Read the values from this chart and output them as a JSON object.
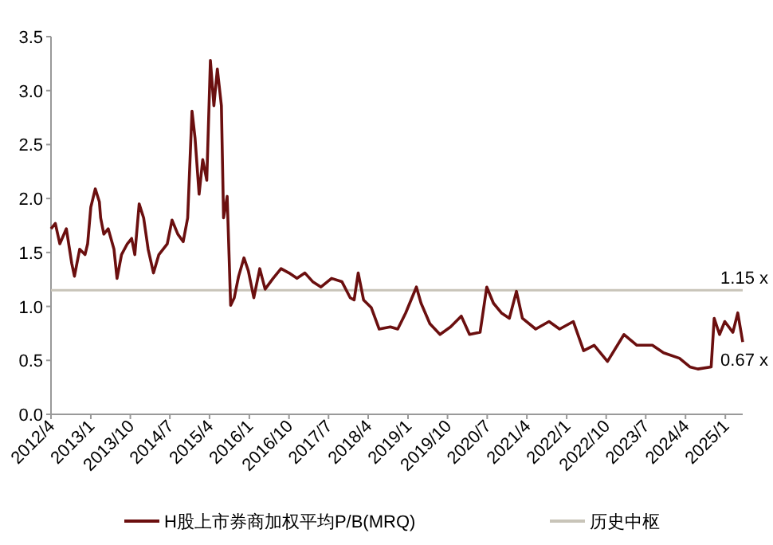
{
  "chart_data": {
    "type": "line",
    "marker": "none",
    "line_style": "solid",
    "legend": "bottom",
    "xlim": [
      "2012-04-01",
      "2025-05-01"
    ],
    "ylim": [
      0,
      3.5
    ],
    "yticks": [
      {
        "value": 0,
        "label": "0.0"
      },
      {
        "value": 0.5,
        "label": "0.5"
      },
      {
        "value": 1,
        "label": "1.0"
      },
      {
        "value": 1.5,
        "label": "1.5"
      },
      {
        "value": 2,
        "label": "2.0"
      },
      {
        "value": 2.5,
        "label": "2.5"
      },
      {
        "value": 3,
        "label": "3.0"
      },
      {
        "value": 3.5,
        "label": "3.5"
      }
    ],
    "xticks": [
      {
        "value": "2012-04",
        "label": "2012/4"
      },
      {
        "value": "2013-01",
        "label": "2013/1"
      },
      {
        "value": "2013-10",
        "label": "2013/10"
      },
      {
        "value": "2014-07",
        "label": "2014/7"
      },
      {
        "value": "2015-04",
        "label": "2015/4"
      },
      {
        "value": "2016-01",
        "label": "2016/1"
      },
      {
        "value": "2016-10",
        "label": "2016/10"
      },
      {
        "value": "2017-07",
        "label": "2017/7"
      },
      {
        "value": "2018-04",
        "label": "2018/4"
      },
      {
        "value": "2019-01",
        "label": "2019/1"
      },
      {
        "value": "2019-10",
        "label": "2019/10"
      },
      {
        "value": "2020-07",
        "label": "2020/7"
      },
      {
        "value": "2021-04",
        "label": "2021/4"
      },
      {
        "value": "2022-01",
        "label": "2022/1"
      },
      {
        "value": "2022-10",
        "label": "2022/10"
      },
      {
        "value": "2023-07",
        "label": "2023/7"
      },
      {
        "value": "2024-04",
        "label": "2024/4"
      },
      {
        "value": "2025-01",
        "label": "2025/1"
      }
    ],
    "series": [
      {
        "name": "H股上市券商加权平均P/B(MRQ)",
        "color": "#6b0f0f",
        "x": [
          "2012-04-01",
          "2012-05-01",
          "2012-06-01",
          "2012-07-16",
          "2012-08-22",
          "2012-09-10",
          "2012-10-16",
          "2012-11-22",
          "2012-12-10",
          "2013-01-01",
          "2013-02-01",
          "2013-03-01",
          "2013-03-10",
          "2013-04-01",
          "2013-05-01",
          "2013-06-10",
          "2013-07-01",
          "2013-08-01",
          "2013-09-10",
          "2013-10-10",
          "2013-11-01",
          "2013-12-01",
          "2014-01-01",
          "2014-02-01",
          "2014-03-10",
          "2014-04-16",
          "2014-06-13",
          "2014-07-16",
          "2014-08-25",
          "2014-10-01",
          "2014-11-01",
          "2014-12-01",
          "2014-12-22",
          "2015-01-19",
          "2015-02-13",
          "2015-03-13",
          "2015-04-07",
          "2015-05-01",
          "2015-05-25",
          "2015-06-22",
          "2015-07-07",
          "2015-08-01",
          "2015-08-25",
          "2015-09-19",
          "2015-10-19",
          "2015-11-25",
          "2015-12-25",
          "2016-02-01",
          "2016-03-13",
          "2016-04-19",
          "2016-06-13",
          "2016-08-07",
          "2016-10-01",
          "2016-11-25",
          "2017-01-19",
          "2017-03-13",
          "2017-05-10",
          "2017-07-22",
          "2017-10-01",
          "2017-11-28",
          "2017-12-25",
          "2018-01-22",
          "2018-02-28",
          "2018-04-22",
          "2018-06-16",
          "2018-09-01",
          "2018-10-22",
          "2018-12-16",
          "2019-02-28",
          "2019-04-01",
          "2019-06-01",
          "2019-08-10",
          "2019-10-22",
          "2020-01-04",
          "2020-03-01",
          "2020-05-13",
          "2020-06-28",
          "2020-08-13",
          "2020-10-07",
          "2020-12-01",
          "2021-01-19",
          "2021-03-01",
          "2021-06-01",
          "2021-09-01",
          "2021-11-13",
          "2022-02-16",
          "2022-04-28",
          "2022-07-10",
          "2022-10-10",
          "2023-02-01",
          "2023-05-01",
          "2023-08-16",
          "2023-11-01",
          "2024-02-19",
          "2024-05-01",
          "2024-06-25",
          "2024-09-25",
          "2024-10-16",
          "2024-11-22",
          "2024-12-28",
          "2025-02-22",
          "2025-03-28",
          "2025-05-01"
        ],
        "values": [
          1.72,
          1.77,
          1.58,
          1.72,
          1.4,
          1.28,
          1.53,
          1.48,
          1.58,
          1.92,
          2.09,
          1.97,
          1.82,
          1.67,
          1.72,
          1.53,
          1.26,
          1.48,
          1.58,
          1.63,
          1.48,
          1.95,
          1.82,
          1.53,
          1.31,
          1.48,
          1.58,
          1.8,
          1.67,
          1.6,
          1.82,
          2.81,
          2.56,
          2.04,
          2.36,
          2.17,
          3.28,
          2.86,
          3.2,
          2.86,
          1.82,
          2.02,
          1.01,
          1.08,
          1.28,
          1.45,
          1.33,
          1.08,
          1.35,
          1.16,
          1.26,
          1.35,
          1.31,
          1.26,
          1.31,
          1.23,
          1.18,
          1.26,
          1.23,
          1.08,
          1.06,
          1.31,
          1.06,
          0.99,
          0.79,
          0.81,
          0.79,
          0.94,
          1.18,
          1.03,
          0.84,
          0.74,
          0.81,
          0.91,
          0.74,
          0.76,
          1.18,
          1.03,
          0.94,
          0.89,
          1.14,
          0.89,
          0.79,
          0.86,
          0.79,
          0.86,
          0.59,
          0.64,
          0.49,
          0.74,
          0.64,
          0.64,
          0.57,
          0.52,
          0.44,
          0.42,
          0.44,
          0.89,
          0.74,
          0.86,
          0.76,
          0.94,
          0.67
        ]
      },
      {
        "name": "历史中枢",
        "color": "#c8c4b8",
        "x": [
          "2012-04-01",
          "2025-05-01"
        ],
        "values": [
          1.15,
          1.15
        ]
      }
    ],
    "annotations": [
      {
        "text": "1.15 x",
        "x": "2025-05-01",
        "y": 1.15
      },
      {
        "text": "0.67 x",
        "x": "2025-05-01",
        "y": 0.67
      }
    ]
  }
}
